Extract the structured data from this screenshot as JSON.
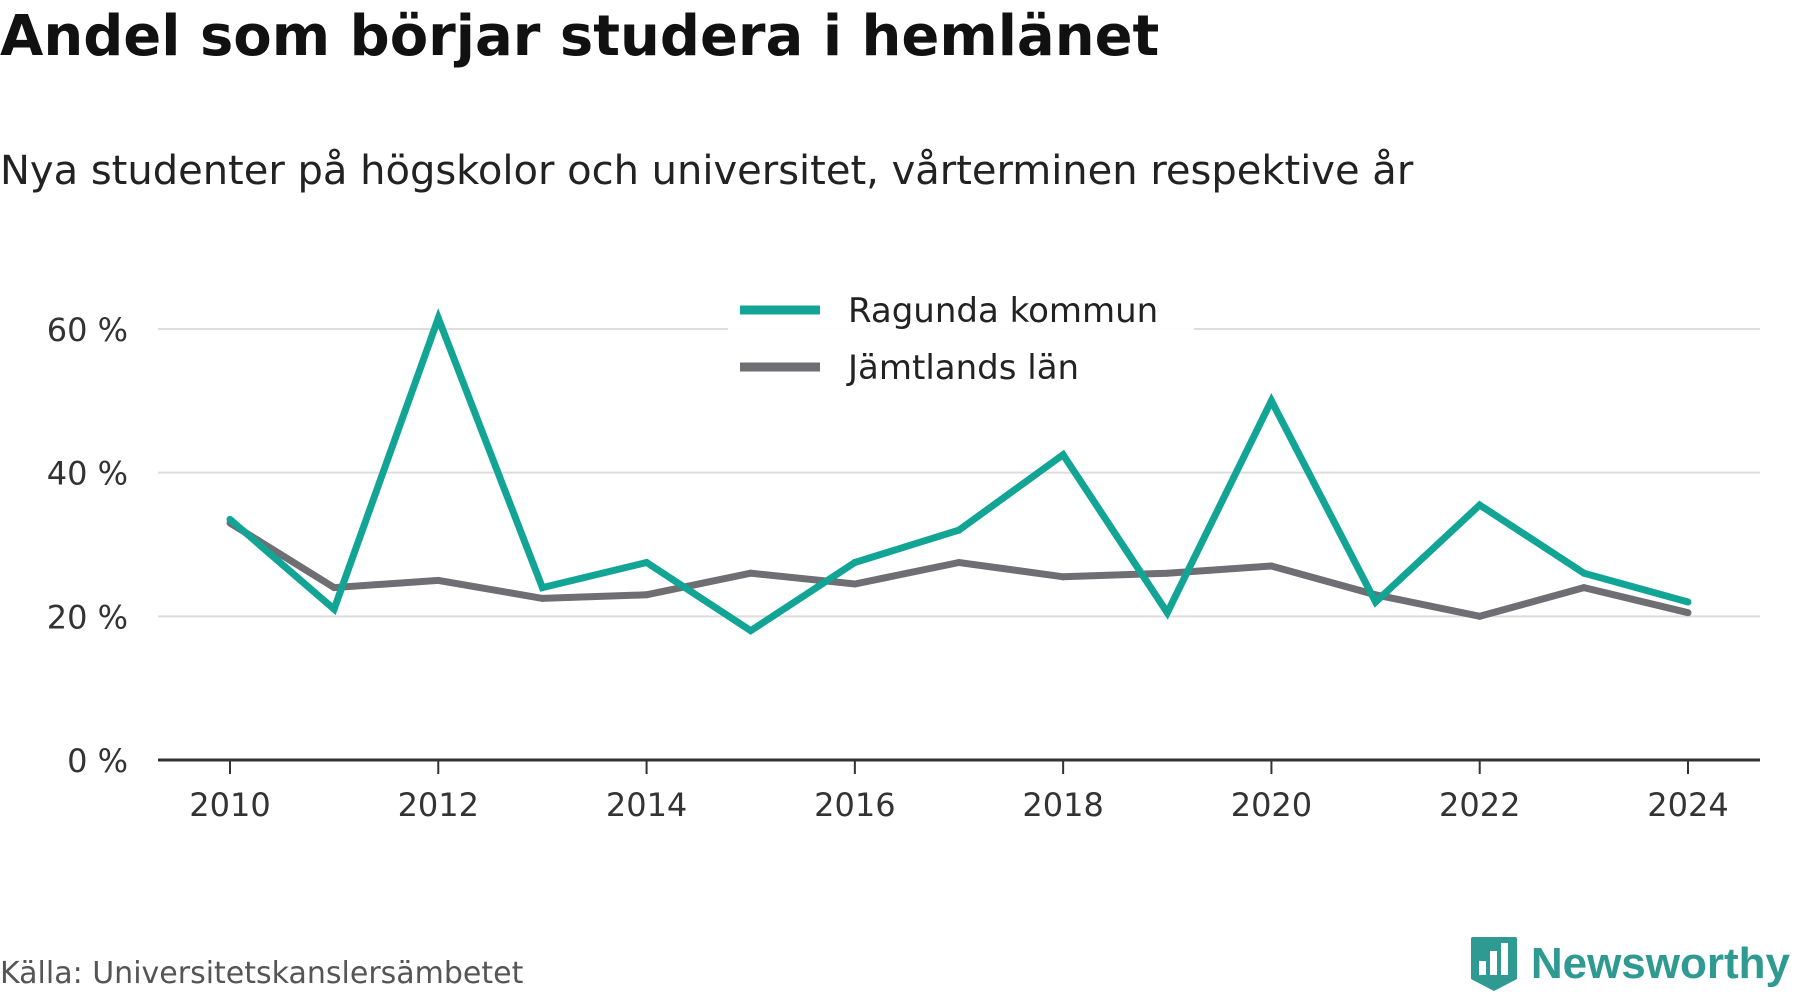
{
  "header": {
    "title": "Andel som börjar studera i hemlänet",
    "subtitle": "Nya studenter på högskolor och universitet, vårterminen respektive år"
  },
  "footer": {
    "source": "Källa: Universitetskanslersämbetet",
    "brand": "Newsworthy",
    "brand_icon": "bar-chart-badge-icon"
  },
  "colors": {
    "ragunda": "#12a596",
    "jamtland": "#6e6e73",
    "grid": "#dddddd",
    "axis": "#333333",
    "brand": "#2e9a91"
  },
  "chart_data": {
    "type": "line",
    "title": "Andel som börjar studera i hemlänet",
    "subtitle": "Nya studenter på högskolor och universitet, vårterminen respektive år",
    "xlabel": "",
    "ylabel": "",
    "x": [
      2010,
      2011,
      2012,
      2013,
      2014,
      2015,
      2016,
      2017,
      2018,
      2019,
      2020,
      2021,
      2022,
      2023,
      2024
    ],
    "xticks": [
      "2010",
      "2012",
      "2014",
      "2016",
      "2018",
      "2020",
      "2022",
      "2024"
    ],
    "yticks": [
      "0 %",
      "20 %",
      "40 %",
      "60 %"
    ],
    "ytick_values": [
      0,
      20,
      40,
      60
    ],
    "xlim": [
      2010,
      2024
    ],
    "ylim": [
      0,
      60
    ],
    "grid": true,
    "legend_position": "top-center",
    "series": [
      {
        "name": "Ragunda kommun",
        "color": "#12a596",
        "values": [
          33.5,
          21.0,
          61.5,
          24.0,
          27.5,
          18.0,
          27.5,
          32.0,
          42.5,
          20.5,
          50.0,
          22.0,
          35.5,
          26.0,
          22.0
        ]
      },
      {
        "name": "Jämtlands län",
        "color": "#6e6e73",
        "values": [
          33.0,
          24.0,
          25.0,
          22.5,
          23.0,
          26.0,
          24.5,
          27.5,
          25.5,
          26.0,
          27.0,
          23.0,
          20.0,
          24.0,
          20.5
        ]
      }
    ]
  }
}
